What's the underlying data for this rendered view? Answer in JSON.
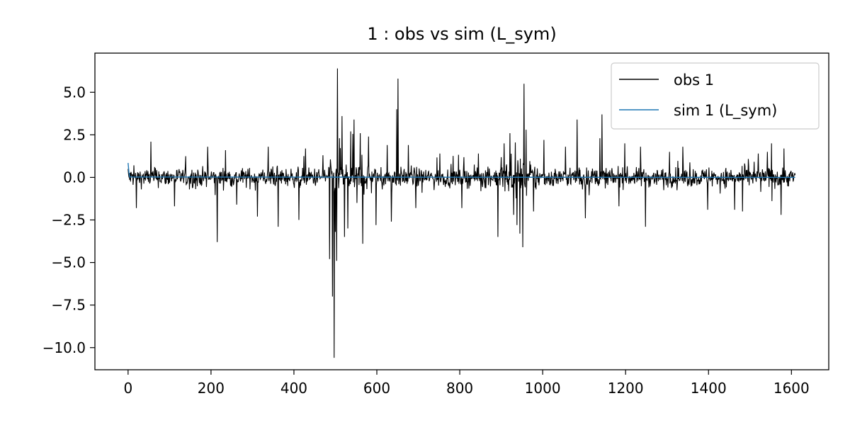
{
  "chart_data": {
    "type": "line",
    "title": "1 : obs vs sim (L_sym)",
    "xlabel": "",
    "ylabel": "",
    "xlim": [
      -80,
      1690
    ],
    "ylim": [
      -11.3,
      7.3
    ],
    "x_ticks": [
      0,
      200,
      400,
      600,
      800,
      1000,
      1200,
      1400,
      1600
    ],
    "x_tick_labels": [
      "0",
      "200",
      "400",
      "600",
      "800",
      "1000",
      "1200",
      "1400",
      "1600"
    ],
    "y_ticks": [
      5.0,
      2.5,
      0.0,
      -2.5,
      -5.0,
      -7.5,
      -10.0
    ],
    "y_tick_labels": [
      "5.0",
      "2.5",
      "0.0",
      "−2.5",
      "−5.0",
      "−7.5",
      "−10.0"
    ],
    "grid": false,
    "legend_position": "top-right",
    "series": [
      {
        "name": "obs 1",
        "color": "#000000",
        "n_points": 1610,
        "x_start": 0,
        "x_end": 1609,
        "typical_amplitude": 0.7,
        "spikes": [
          {
            "x": 0,
            "y": 0.5
          },
          {
            "x": 20,
            "y": -1.8
          },
          {
            "x": 55,
            "y": 2.1
          },
          {
            "x": 112,
            "y": -1.7
          },
          {
            "x": 192,
            "y": 1.8
          },
          {
            "x": 215,
            "y": -3.8
          },
          {
            "x": 235,
            "y": 1.6
          },
          {
            "x": 262,
            "y": -1.6
          },
          {
            "x": 312,
            "y": -2.3
          },
          {
            "x": 338,
            "y": 1.8
          },
          {
            "x": 362,
            "y": -2.9
          },
          {
            "x": 412,
            "y": -2.5
          },
          {
            "x": 428,
            "y": 1.7
          },
          {
            "x": 470,
            "y": 1.3
          },
          {
            "x": 486,
            "y": -4.8
          },
          {
            "x": 493,
            "y": -7.0
          },
          {
            "x": 497,
            "y": -10.6
          },
          {
            "x": 500,
            "y": -3.2
          },
          {
            "x": 503,
            "y": -4.9
          },
          {
            "x": 505,
            "y": 6.4
          },
          {
            "x": 510,
            "y": 2.3
          },
          {
            "x": 516,
            "y": 3.6
          },
          {
            "x": 522,
            "y": -3.5
          },
          {
            "x": 530,
            "y": -3.0
          },
          {
            "x": 537,
            "y": 2.7
          },
          {
            "x": 545,
            "y": 3.4
          },
          {
            "x": 552,
            "y": -1.5
          },
          {
            "x": 560,
            "y": 2.6
          },
          {
            "x": 566,
            "y": -3.9
          },
          {
            "x": 580,
            "y": 2.4
          },
          {
            "x": 598,
            "y": -2.8
          },
          {
            "x": 625,
            "y": 1.9
          },
          {
            "x": 635,
            "y": -2.6
          },
          {
            "x": 648,
            "y": 4.0
          },
          {
            "x": 651,
            "y": 5.8
          },
          {
            "x": 676,
            "y": 1.9
          },
          {
            "x": 694,
            "y": -1.8
          },
          {
            "x": 752,
            "y": 1.4
          },
          {
            "x": 805,
            "y": -1.8
          },
          {
            "x": 845,
            "y": 1.4
          },
          {
            "x": 892,
            "y": -3.5
          },
          {
            "x": 907,
            "y": 2.0
          },
          {
            "x": 921,
            "y": 2.6
          },
          {
            "x": 930,
            "y": -2.2
          },
          {
            "x": 938,
            "y": -2.8
          },
          {
            "x": 945,
            "y": -3.3
          },
          {
            "x": 952,
            "y": -4.1
          },
          {
            "x": 955,
            "y": 5.5
          },
          {
            "x": 960,
            "y": 2.8
          },
          {
            "x": 978,
            "y": -2.0
          },
          {
            "x": 1003,
            "y": 2.2
          },
          {
            "x": 1055,
            "y": 1.8
          },
          {
            "x": 1083,
            "y": 3.4
          },
          {
            "x": 1103,
            "y": -2.4
          },
          {
            "x": 1138,
            "y": 2.3
          },
          {
            "x": 1143,
            "y": 3.7
          },
          {
            "x": 1184,
            "y": -1.7
          },
          {
            "x": 1198,
            "y": 2.0
          },
          {
            "x": 1236,
            "y": 1.8
          },
          {
            "x": 1248,
            "y": -2.9
          },
          {
            "x": 1306,
            "y": 1.5
          },
          {
            "x": 1338,
            "y": 1.8
          },
          {
            "x": 1398,
            "y": -1.9
          },
          {
            "x": 1463,
            "y": -1.9
          },
          {
            "x": 1482,
            "y": -2.0
          },
          {
            "x": 1520,
            "y": 1.4
          },
          {
            "x": 1542,
            "y": 1.5
          },
          {
            "x": 1552,
            "y": 2.0
          },
          {
            "x": 1575,
            "y": -2.2
          },
          {
            "x": 1582,
            "y": 1.7
          }
        ]
      },
      {
        "name": "sim 1 (L_sym)",
        "color": "#1f77b4",
        "x": [
          0,
          2,
          4,
          1609
        ],
        "y": [
          0.85,
          0.3,
          0.02,
          0.0
        ]
      }
    ]
  }
}
